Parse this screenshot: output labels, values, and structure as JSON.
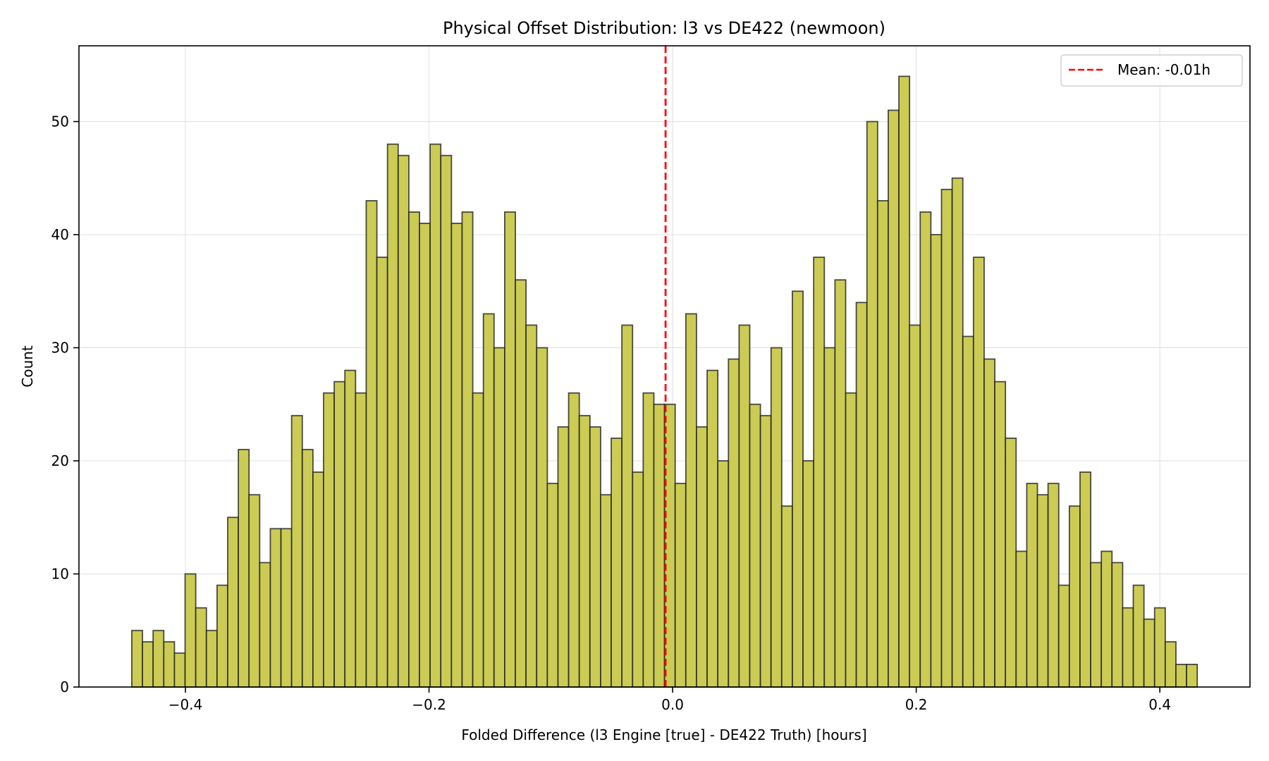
{
  "chart_data": {
    "type": "bar",
    "title": "Physical Offset Distribution: l3 vs DE422 (newmoon)",
    "xlabel": "Folded Difference (l3 Engine [true] - DE422 Truth) [hours]",
    "ylabel": "Count",
    "xlim": [
      -0.4874,
      0.474
    ],
    "ylim": [
      0,
      56.7
    ],
    "bin_start": -0.444,
    "bin_end": 0.4307,
    "bin_count": 100,
    "values": [
      5,
      4,
      5,
      4,
      3,
      10,
      7,
      5,
      9,
      15,
      21,
      17,
      11,
      14,
      14,
      24,
      21,
      19,
      26,
      27,
      28,
      26,
      43,
      38,
      48,
      47,
      42,
      41,
      48,
      47,
      41,
      42,
      26,
      33,
      30,
      42,
      36,
      32,
      30,
      18,
      23,
      26,
      24,
      23,
      17,
      22,
      32,
      19,
      26,
      25,
      25,
      18,
      33,
      23,
      28,
      20,
      29,
      32,
      25,
      24,
      30,
      16,
      35,
      20,
      38,
      30,
      36,
      26,
      34,
      50,
      43,
      51,
      54,
      32,
      42,
      40,
      44,
      45,
      31,
      38,
      29,
      27,
      22,
      12,
      18,
      17,
      18,
      9,
      16,
      19,
      11,
      12,
      11,
      7,
      9,
      6,
      7,
      4,
      2,
      2
    ],
    "xticks": [
      -0.4,
      -0.2,
      0.0,
      0.2,
      0.4
    ],
    "xtick_labels": [
      "−0.4",
      "−0.2",
      "0.0",
      "0.2",
      "0.4"
    ],
    "yticks": [
      0,
      10,
      20,
      30,
      40,
      50
    ],
    "ytick_labels": [
      "0",
      "10",
      "20",
      "30",
      "40",
      "50"
    ],
    "mean": -0.0058,
    "legend": {
      "label": "Mean: -0.01h",
      "placement": "top-right"
    },
    "grid": true,
    "colors": {
      "bar": "#cccc55",
      "edge": "#222222",
      "mean_line": "#ff0000",
      "grid": "#e0e0e0"
    }
  }
}
